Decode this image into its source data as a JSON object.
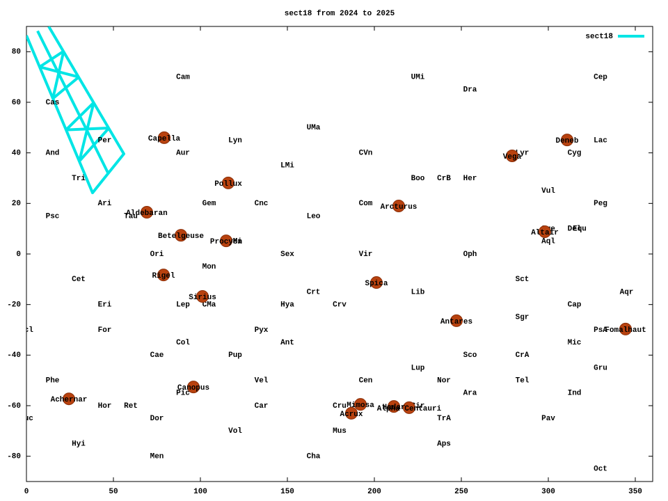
{
  "chart_data": {
    "type": "scatter",
    "title": "sect18 from 2024 to 2025",
    "xlim": [
      0,
      360
    ],
    "ylim": [
      -90,
      90
    ],
    "xticks": [
      0,
      50,
      100,
      150,
      200,
      250,
      300,
      350
    ],
    "yticks": [
      -80,
      -60,
      -40,
      -20,
      0,
      20,
      40,
      60,
      80
    ],
    "legend": "top right",
    "series": [
      {
        "name": "sect18",
        "color": "#00e5e5",
        "x": [
          0,
          38,
          56,
          12.8,
          null,
          6.4,
          47,
          null,
          7.6,
          21.4,
          null,
          15.2,
          30.1,
          null,
          22.8,
          38.7,
          null,
          30.4,
          47.4,
          null,
          7.6,
          30.1,
          null,
          21.4,
          15.2,
          null,
          22.8,
          47.4,
          null,
          38.7,
          30.4
        ],
        "y": [
          86.4,
          24.2,
          39.6,
          90,
          null,
          88.2,
          31.9,
          null,
          74.0,
          80.2,
          null,
          61.5,
          70.0,
          null,
          49.1,
          59.9,
          null,
          36.7,
          49.8,
          null,
          74.0,
          70.0,
          null,
          80.2,
          61.5,
          null,
          49.1,
          49.8,
          null,
          59.9,
          36.7
        ]
      }
    ],
    "points": {
      "color": "#b8420f",
      "names": [
        "Capella",
        "Deneb",
        "Vega",
        "Pollux",
        "Aldebaran",
        "Arcturus",
        "Altair",
        "Betelgeuse",
        "Procyon",
        "Rigel",
        "Spica",
        "Sirius",
        "Antares",
        "Fomalhaut",
        "Canopus",
        "Achernar",
        "Mimosa",
        "Hadar",
        "Alpha Centauri",
        "Acrux"
      ],
      "x": [
        79.2,
        310.8,
        279.2,
        116,
        69.2,
        214,
        298,
        88.8,
        114.8,
        78.8,
        201.2,
        101.2,
        247.2,
        344.4,
        96,
        24.4,
        192,
        211.2,
        220,
        186.8
      ],
      "y": [
        46.0,
        45.1,
        38.8,
        28.1,
        16.5,
        19.0,
        8.8,
        7.4,
        5.2,
        -8.3,
        -11.3,
        -16.8,
        -26.4,
        -29.7,
        -52.6,
        -57.3,
        -59.5,
        -60.3,
        -60.8,
        -63.0
      ]
    },
    "annotations": {
      "labels": [
        "Cam",
        "UMi",
        "Cep",
        "Dra",
        "Cas",
        "UMa",
        "Per",
        "Lyn",
        "Lac",
        "And",
        "Aur",
        "CVn",
        "Lyr",
        "Cyg",
        "LMi",
        "Tri",
        "Boo",
        "CrB",
        "Her",
        "Vul",
        "Ari",
        "Gem",
        "Cnc",
        "Com",
        "Peg",
        "Psc",
        "Tau",
        "Leo",
        "Sge",
        "Del",
        "Equ",
        "CMi",
        "Aql",
        "Ori",
        "Sex",
        "Vir",
        "Oph",
        "Mon",
        "Cet",
        "Sct",
        "Crt",
        "Lib",
        "Aqr",
        "Eri",
        "Lep",
        "CMa",
        "Hya",
        "Crv",
        "Cap",
        "Sgr",
        "Scl",
        "For",
        "Pyx",
        "PsA",
        "Col",
        "Ant",
        "Mic",
        "Cae",
        "Pup",
        "Sco",
        "CrA",
        "Lup",
        "Gru",
        "Phe",
        "Vel",
        "Cen",
        "Nor",
        "Tel",
        "Pic",
        "Ara",
        "Ind",
        "Hor",
        "Ret",
        "Car",
        "Cru",
        "Cir",
        "Tuc",
        "Dor",
        "TrA",
        "Pav",
        "Vol",
        "Mus",
        "Hyi",
        "Aps",
        "Men",
        "Cha",
        "Oct"
      ],
      "x": [
        90,
        225,
        330,
        255,
        15,
        165,
        45,
        120,
        330,
        15,
        90,
        195,
        285,
        315,
        150,
        30,
        225,
        240,
        255,
        300,
        45,
        105,
        135,
        195,
        330,
        15,
        60,
        165,
        300,
        315,
        318,
        120,
        300,
        75,
        150,
        195,
        255,
        105,
        30,
        285,
        165,
        225,
        345,
        45,
        90,
        105,
        150,
        180,
        315,
        285,
        0,
        45,
        135,
        330,
        90,
        150,
        315,
        75,
        120,
        255,
        285,
        225,
        330,
        15,
        135,
        195,
        240,
        285,
        90,
        255,
        315,
        45,
        60,
        135,
        180,
        225,
        0,
        75,
        240,
        300,
        120,
        180,
        30,
        240,
        75,
        165,
        330
      ],
      "y": [
        70,
        70,
        70,
        65,
        60,
        50,
        45,
        45,
        45,
        40,
        40,
        40,
        40,
        40,
        35,
        30,
        30,
        30,
        30,
        25,
        20,
        20,
        20,
        20,
        20,
        15,
        15,
        15,
        10,
        10,
        10,
        5,
        5,
        0,
        0,
        0,
        0,
        -5,
        -10,
        -10,
        -15,
        -15,
        -15,
        -20,
        -20,
        -20,
        -20,
        -20,
        -20,
        -25,
        -30,
        -30,
        -30,
        -30,
        -35,
        -35,
        -35,
        -40,
        -40,
        -40,
        -40,
        -45,
        -45,
        -50,
        -50,
        -50,
        -50,
        -50,
        -55,
        -55,
        -55,
        -60,
        -60,
        -60,
        -60,
        -60,
        -65,
        -65,
        -65,
        -65,
        -70,
        -70,
        -75,
        -75,
        -80,
        -80,
        -85
      ]
    }
  }
}
